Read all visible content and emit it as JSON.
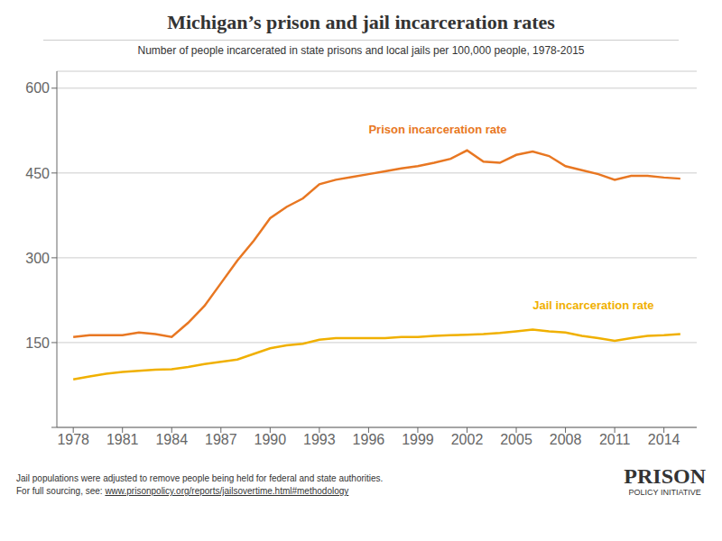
{
  "chart_data": {
    "type": "line",
    "title": "Michigan’s prison and jail incarceration rates",
    "subtitle": "Number of people incarcerated in state prisons and local jails per 100,000 people, 1978-2015",
    "x": [
      1978,
      1979,
      1980,
      1981,
      1982,
      1983,
      1984,
      1985,
      1986,
      1987,
      1988,
      1989,
      1990,
      1991,
      1992,
      1993,
      1994,
      1995,
      1996,
      1997,
      1998,
      1999,
      2000,
      2001,
      2002,
      2003,
      2004,
      2005,
      2006,
      2007,
      2008,
      2009,
      2010,
      2011,
      2012,
      2013,
      2014,
      2015
    ],
    "series": [
      {
        "name": "Prison incarceration rate",
        "color": "#e87722",
        "values": [
          160,
          163,
          163,
          163,
          168,
          165,
          160,
          185,
          215,
          255,
          295,
          330,
          370,
          390,
          405,
          430,
          438,
          443,
          448,
          453,
          458,
          462,
          468,
          475,
          490,
          470,
          468,
          482,
          488,
          480,
          462,
          455,
          448,
          438,
          445,
          445,
          442,
          440
        ]
      },
      {
        "name": "Jail incarceration rate",
        "color": "#f0b000",
        "values": [
          85,
          90,
          95,
          98,
          100,
          102,
          103,
          107,
          112,
          116,
          120,
          130,
          140,
          145,
          148,
          155,
          158,
          158,
          158,
          158,
          160,
          160,
          162,
          163,
          164,
          165,
          167,
          170,
          173,
          170,
          168,
          162,
          158,
          153,
          158,
          162,
          163,
          165
        ]
      }
    ],
    "xlim": [
      1977,
      2016
    ],
    "xticks": [
      1978,
      1981,
      1984,
      1987,
      1990,
      1993,
      1996,
      1999,
      2002,
      2005,
      2008,
      2011,
      2014
    ],
    "ylim": [
      0,
      630
    ],
    "yticks": [
      {
        "value": 0,
        "label": ""
      },
      150,
      300,
      450,
      600
    ],
    "grid": true,
    "footnote": "Jail populations were adjusted to remove people being held for federal and state authorities.",
    "source_prefix": "For full sourcing, see: ",
    "source_url": "www.prisonpolicy.org/reports/jailsovertime.html#methodology",
    "logo": [
      "PRISON",
      "POLICY INITIATIVE"
    ]
  }
}
